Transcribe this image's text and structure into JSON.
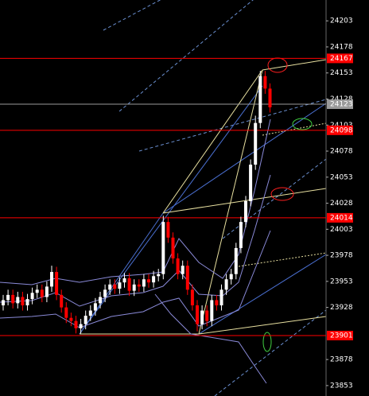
{
  "chart_data": {
    "type": "candlestick",
    "open": [
      23930,
      23935,
      23940,
      23932,
      23938,
      23930,
      23936,
      23942,
      23945,
      23938,
      23948,
      23962,
      23940,
      23928,
      23918,
      23915,
      23908,
      23912,
      23920,
      23925,
      23932,
      23938,
      23945,
      23950,
      23946,
      23952,
      23956,
      23944,
      23950,
      23948,
      23955,
      23952,
      23958,
      23960,
      24010,
      23995,
      23975,
      23960,
      23968,
      23945,
      23930,
      23912,
      23925,
      23915,
      23935,
      23930,
      23945,
      23955,
      23960,
      23985,
      24010,
      24030,
      24065,
      24105,
      24150,
      24138
    ],
    "high": [
      23940,
      23945,
      23945,
      23943,
      23943,
      23941,
      23947,
      23950,
      23950,
      23953,
      23968,
      23967,
      23945,
      23933,
      23923,
      23920,
      23917,
      23925,
      23930,
      23937,
      23943,
      23950,
      23955,
      23955,
      23957,
      23961,
      23961,
      23955,
      23955,
      23960,
      23960,
      23963,
      23965,
      24016,
      24015,
      24000,
      23980,
      23973,
      23973,
      23950,
      23935,
      23930,
      23930,
      23940,
      23940,
      23950,
      23960,
      23965,
      23990,
      24015,
      24035,
      24070,
      24112,
      24155,
      24155,
      24143
    ],
    "low": [
      23925,
      23930,
      23927,
      23927,
      23925,
      23925,
      23931,
      23937,
      23933,
      23933,
      23943,
      23935,
      23923,
      23913,
      23910,
      23903,
      23903,
      23907,
      23915,
      23920,
      23927,
      23933,
      23940,
      23941,
      23941,
      23947,
      23939,
      23939,
      23943,
      23943,
      23947,
      23947,
      23953,
      23955,
      23990,
      23970,
      23955,
      23955,
      23940,
      23925,
      23905,
      23907,
      23910,
      23910,
      23925,
      23925,
      23940,
      23950,
      23955,
      23980,
      24005,
      24025,
      24060,
      24100,
      24133,
      24115
    ],
    "close": [
      23935,
      23940,
      23932,
      23938,
      23930,
      23936,
      23942,
      23945,
      23938,
      23948,
      23962,
      23940,
      23928,
      23918,
      23915,
      23908,
      23912,
      23920,
      23925,
      23932,
      23938,
      23945,
      23950,
      23946,
      23952,
      23956,
      23944,
      23950,
      23948,
      23955,
      23952,
      23958,
      23960,
      24010,
      23995,
      23975,
      23960,
      23968,
      23945,
      23930,
      23912,
      23925,
      23915,
      23935,
      23930,
      23945,
      23955,
      23960,
      23985,
      24010,
      24030,
      24065,
      24105,
      24150,
      24138,
      24120
    ],
    "up_color": "#ffffff",
    "down_color": "#ff0000",
    "ylim": [
      23843,
      24223
    ],
    "yticks": [
      24203,
      24178,
      24153,
      24128,
      24103,
      24078,
      24053,
      24028,
      24003,
      23978,
      23953,
      23928,
      23878,
      23853
    ],
    "levels": [
      24167,
      24098,
      24014,
      23901
    ],
    "level_color": "#ff0000",
    "current_price": 24123,
    "current_color": "#9a9a9a"
  }
}
